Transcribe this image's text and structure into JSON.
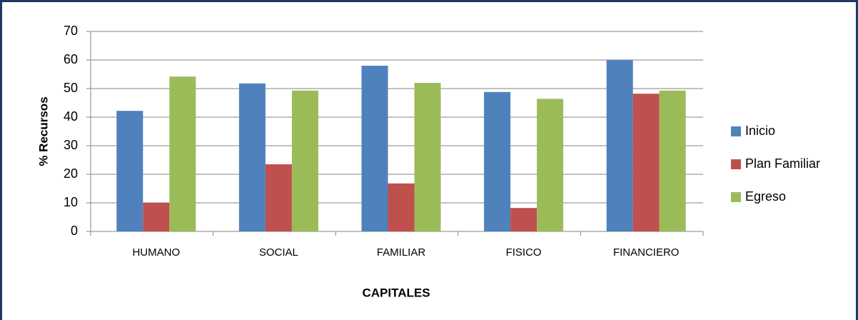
{
  "chart_data": {
    "type": "bar",
    "x_label": "CAPITALES",
    "y_label": "% Recursos",
    "categories": [
      "HUMANO",
      "SOCIAL",
      "FAMILIAR",
      "FISICO",
      "FINANCIERO"
    ],
    "series": [
      {
        "name": "Inicio",
        "color": "#4f81bd",
        "values": [
          42.2,
          51.8,
          58,
          48.8,
          60
        ]
      },
      {
        "name": "Plan Familiar",
        "color": "#c0504d",
        "values": [
          10,
          23.5,
          16.8,
          8.2,
          48.2
        ]
      },
      {
        "name": "Egreso",
        "color": "#9bbb59",
        "values": [
          54.2,
          49.3,
          52,
          46.4,
          49.3
        ]
      }
    ],
    "ylim": [
      0,
      70
    ],
    "yticks": [
      0,
      10,
      20,
      30,
      40,
      50,
      60,
      70
    ],
    "grid": true,
    "legend": "right"
  }
}
